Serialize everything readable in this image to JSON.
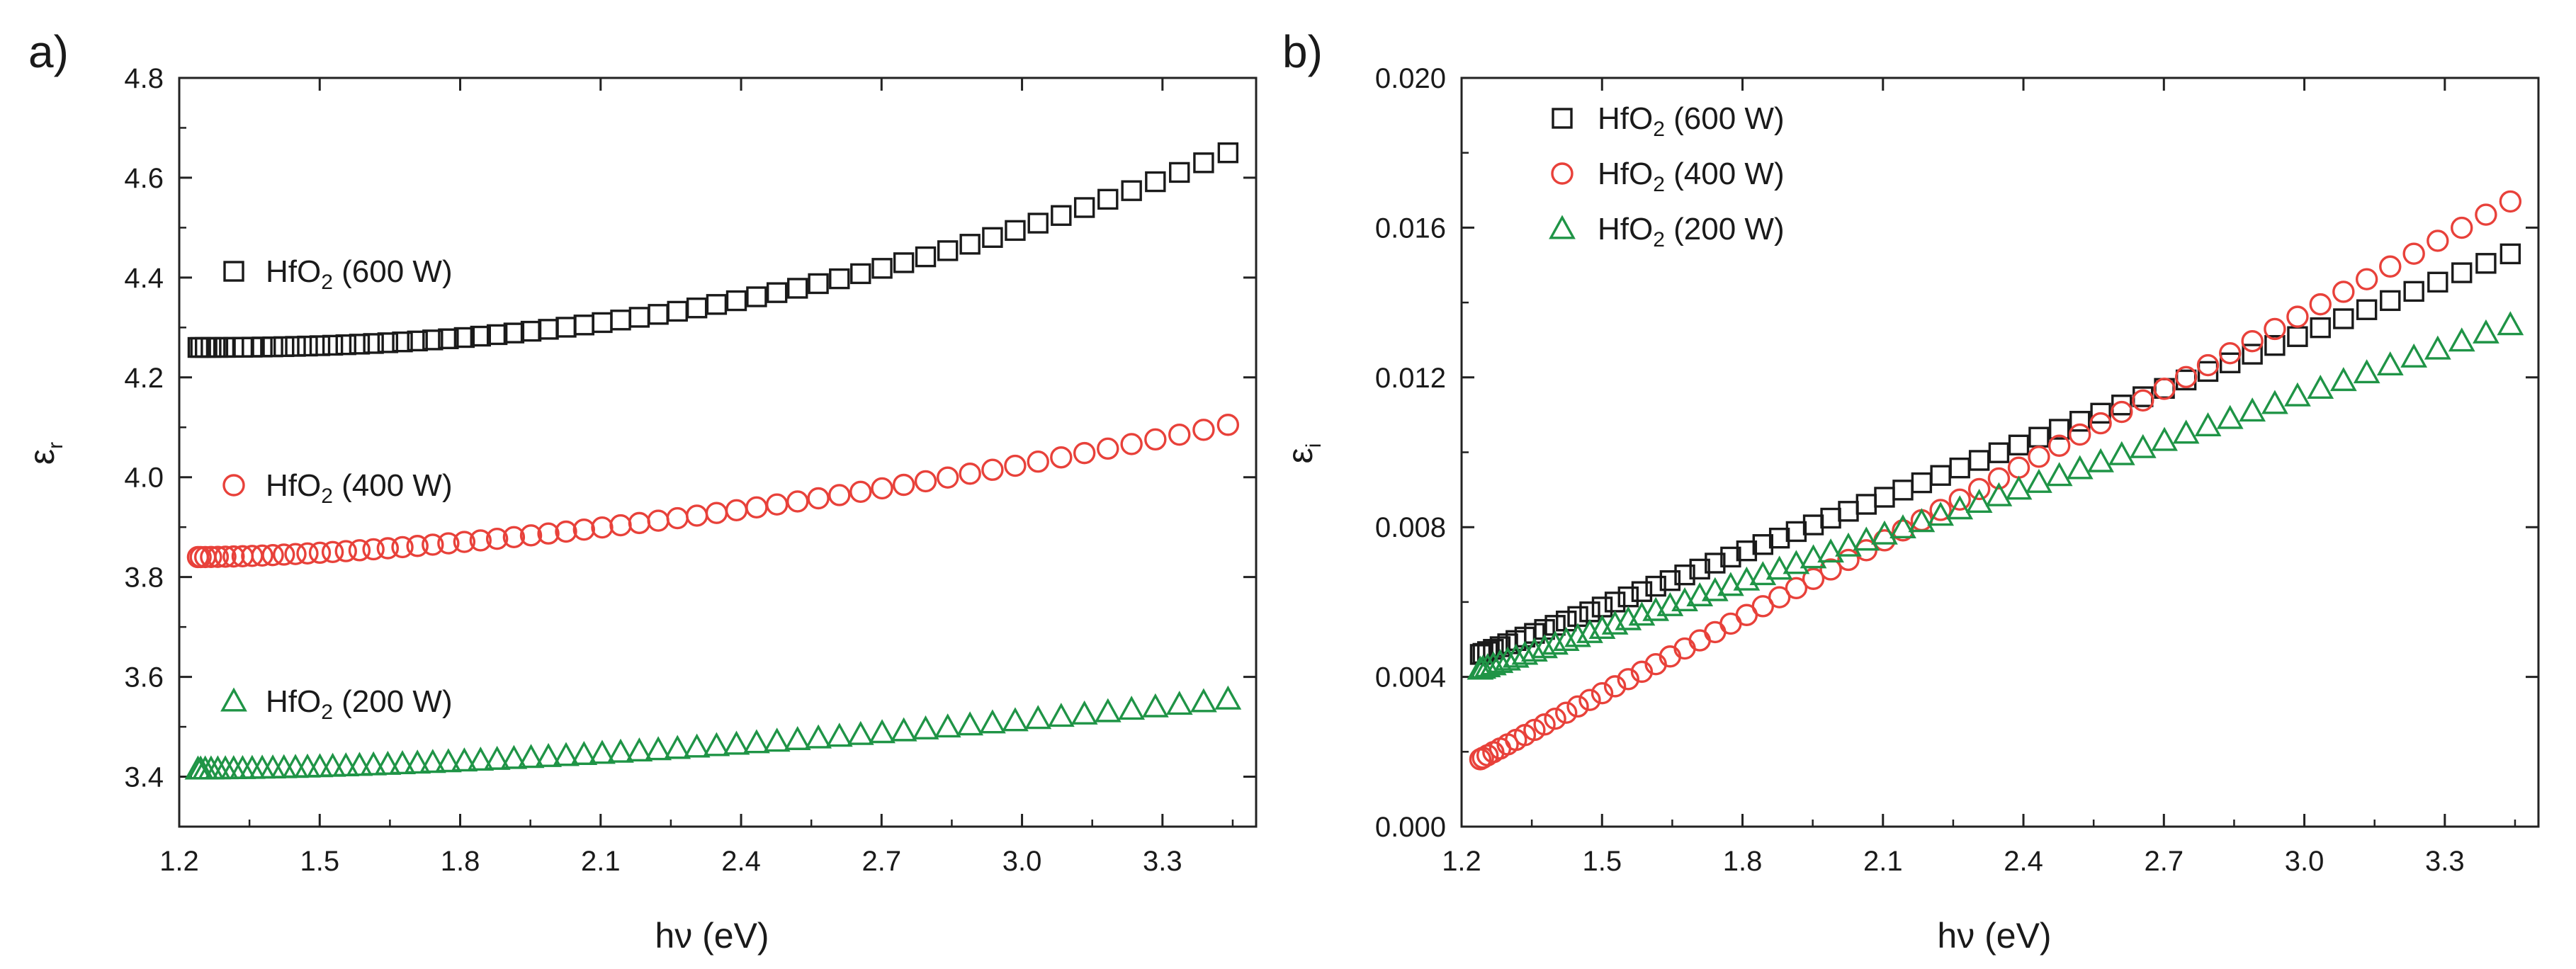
{
  "figure": {
    "panels": [
      {
        "letter": "a)",
        "xlabel": "hν (eV)",
        "ylabel": {
          "base": "ε",
          "sub": "r"
        },
        "xticks": [
          "1.2",
          "1.5",
          "1.8",
          "2.1",
          "2.4",
          "2.7",
          "3.0",
          "3.3"
        ],
        "yticks": [
          "3.4",
          "3.6",
          "3.8",
          "4.0",
          "4.2",
          "4.4",
          "4.6",
          "4.8"
        ],
        "legend": [
          {
            "pre": "HfO",
            "sub": "2",
            "post": " (600 W)"
          },
          {
            "pre": "HfO",
            "sub": "2",
            "post": " (400 W)"
          },
          {
            "pre": "HfO",
            "sub": "2",
            "post": " (200 W)"
          }
        ]
      },
      {
        "letter": "b)",
        "xlabel": "hν (eV)",
        "ylabel": {
          "base": "ε",
          "sub": "i"
        },
        "xticks": [
          "1.2",
          "1.5",
          "1.8",
          "2.1",
          "2.4",
          "2.7",
          "3.0",
          "3.3"
        ],
        "yticks": [
          "0.000",
          "0.004",
          "0.008",
          "0.012",
          "0.016",
          "0.020"
        ],
        "legend": [
          {
            "pre": "HfO",
            "sub": "2",
            "post": " (600 W)"
          },
          {
            "pre": "HfO",
            "sub": "2",
            "post": " (400 W)"
          },
          {
            "pre": "HfO",
            "sub": "2",
            "post": " (200 W)"
          }
        ]
      }
    ]
  },
  "chart_data": [
    {
      "type": "scatter",
      "title": "a)",
      "xlabel": "hν (eV)",
      "ylabel": "ε_r",
      "xlim": [
        1.2,
        3.5
      ],
      "ylim": [
        3.3,
        4.8
      ],
      "x_range": [
        1.24,
        3.44
      ],
      "legend_position": "left-inside",
      "series": [
        {
          "name": "HfO2 (600 W)",
          "marker": "square",
          "color": "#1a1a1a",
          "y_start": 4.26,
          "y_end": 4.65,
          "curvature": 2.2
        },
        {
          "name": "HfO2 (400 W)",
          "marker": "circle",
          "color": "#e8413a",
          "y_start": 3.84,
          "y_end": 4.105,
          "curvature": 1.6
        },
        {
          "name": "HfO2 (200 W)",
          "marker": "triangle",
          "color": "#1f9446",
          "y_start": 3.415,
          "y_end": 3.555,
          "curvature": 1.6
        }
      ]
    },
    {
      "type": "scatter",
      "title": "b)",
      "xlabel": "hν (eV)",
      "ylabel": "ε_i",
      "xlim": [
        1.2,
        3.5
      ],
      "ylim": [
        0.0,
        0.02
      ],
      "x_range": [
        1.24,
        3.44
      ],
      "legend_position": "top-left",
      "series": [
        {
          "name": "HfO2 (600 W)",
          "marker": "square",
          "color": "#1a1a1a",
          "y_start": 0.0046,
          "y_end": 0.0153,
          "curvature": 1.0
        },
        {
          "name": "HfO2 (400 W)",
          "marker": "circle",
          "color": "#e8413a",
          "y_start": 0.0018,
          "y_end": 0.0167,
          "curvature": 1.0
        },
        {
          "name": "HfO2 (200 W)",
          "marker": "triangle",
          "color": "#1f9446",
          "y_start": 0.0042,
          "y_end": 0.0134,
          "curvature": 1.0
        }
      ]
    }
  ]
}
